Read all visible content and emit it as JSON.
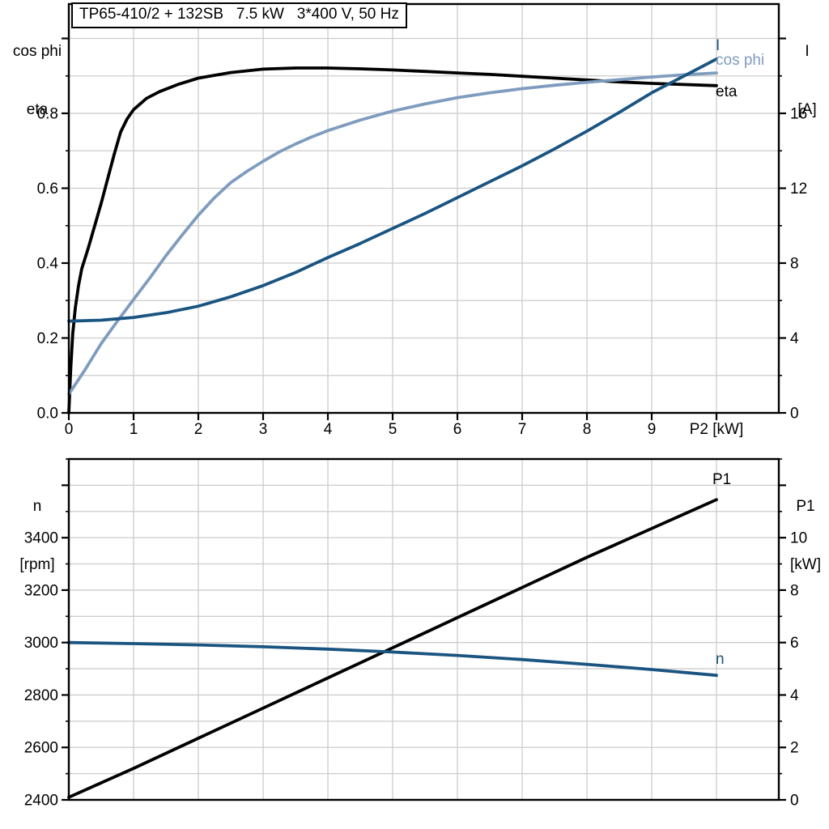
{
  "colors": {
    "black": "#000000",
    "dark_blue": "#1a5481",
    "light_blue": "#7f9cbe",
    "grid": "#cccccc",
    "axis": "#000000"
  },
  "chart_data": [
    {
      "type": "line",
      "title": "TP65-410/2 + 132SB   7.5 kW   3*400 V, 50 Hz",
      "x_axis": {
        "label": "P2 [kW]",
        "label_at": 10,
        "range": [
          0,
          10.9625
        ],
        "major_ticks": [
          0,
          1,
          2,
          3,
          4,
          5,
          6,
          7,
          8,
          9,
          10
        ],
        "tick_labels": [
          "0",
          "1",
          "2",
          "3",
          "4",
          "5",
          "6",
          "7",
          "8",
          "9",
          ""
        ],
        "gridlines": [
          1,
          2,
          3,
          4,
          5,
          6,
          7,
          8,
          9,
          10
        ]
      },
      "left_axis": {
        "header": [
          "cos phi",
          "eta"
        ],
        "range": [
          0,
          1.0919
        ],
        "major_ticks": [
          0,
          0.2,
          0.4,
          0.6,
          0.8,
          1.0
        ],
        "tick_labels": [
          "0.0",
          "0.2",
          "0.4",
          "0.6",
          "0.8",
          ""
        ],
        "minor_ticks": [
          0.1,
          0.3,
          0.5,
          0.7,
          0.9
        ],
        "gridlines": [
          0.1,
          0.2,
          0.3,
          0.4,
          0.5,
          0.6,
          0.7,
          0.8,
          0.9,
          1.0
        ]
      },
      "right_axis": {
        "header": [
          "I",
          "[A]"
        ],
        "range": [
          0,
          21.838
        ],
        "major_ticks": [
          0,
          4,
          8,
          12,
          16,
          20
        ],
        "tick_labels": [
          "0",
          "4",
          "8",
          "12",
          "16",
          ""
        ],
        "minor_ticks": [
          2,
          6,
          10,
          14,
          18
        ]
      },
      "series": [
        {
          "name": "eta",
          "label": "eta",
          "axis": "left",
          "color": "#000000",
          "points": [
            [
              0,
              0
            ],
            [
              0.03,
              0.12
            ],
            [
              0.06,
              0.21
            ],
            [
              0.1,
              0.28
            ],
            [
              0.15,
              0.34
            ],
            [
              0.2,
              0.385
            ],
            [
              0.3,
              0.44
            ],
            [
              0.4,
              0.5
            ],
            [
              0.5,
              0.56
            ],
            [
              0.6,
              0.625
            ],
            [
              0.7,
              0.69
            ],
            [
              0.8,
              0.75
            ],
            [
              0.9,
              0.785
            ],
            [
              1.0,
              0.81
            ],
            [
              1.2,
              0.84
            ],
            [
              1.4,
              0.858
            ],
            [
              1.7,
              0.878
            ],
            [
              2.0,
              0.894
            ],
            [
              2.5,
              0.909
            ],
            [
              3.0,
              0.918
            ],
            [
              3.5,
              0.921
            ],
            [
              4.0,
              0.921
            ],
            [
              4.5,
              0.919
            ],
            [
              5.0,
              0.916
            ],
            [
              5.5,
              0.912
            ],
            [
              6.0,
              0.908
            ],
            [
              6.5,
              0.904
            ],
            [
              7.0,
              0.899
            ],
            [
              7.5,
              0.894
            ],
            [
              8.0,
              0.889
            ],
            [
              8.5,
              0.884
            ],
            [
              9.0,
              0.88
            ],
            [
              9.5,
              0.877
            ],
            [
              10.0,
              0.874
            ]
          ]
        },
        {
          "name": "cos phi",
          "label": "cos phi",
          "axis": "left",
          "color": "#7f9cbe",
          "points": [
            [
              0,
              0.05
            ],
            [
              0.25,
              0.115
            ],
            [
              0.5,
              0.185
            ],
            [
              0.75,
              0.245
            ],
            [
              1.0,
              0.303
            ],
            [
              1.25,
              0.36
            ],
            [
              1.5,
              0.42
            ],
            [
              1.75,
              0.475
            ],
            [
              2.0,
              0.528
            ],
            [
              2.25,
              0.575
            ],
            [
              2.5,
              0.615
            ],
            [
              2.75,
              0.645
            ],
            [
              3.0,
              0.672
            ],
            [
              3.25,
              0.697
            ],
            [
              3.5,
              0.718
            ],
            [
              3.75,
              0.737
            ],
            [
              4.0,
              0.754
            ],
            [
              4.5,
              0.782
            ],
            [
              5.0,
              0.806
            ],
            [
              5.5,
              0.825
            ],
            [
              6.0,
              0.842
            ],
            [
              6.5,
              0.855
            ],
            [
              7.0,
              0.866
            ],
            [
              7.5,
              0.875
            ],
            [
              8.0,
              0.883
            ],
            [
              8.5,
              0.89
            ],
            [
              9.0,
              0.897
            ],
            [
              9.5,
              0.903
            ],
            [
              10.0,
              0.908
            ]
          ]
        },
        {
          "name": "I",
          "label": "I",
          "axis": "right",
          "color": "#1a5481",
          "points": [
            [
              0,
              4.9
            ],
            [
              0.5,
              4.95
            ],
            [
              1.0,
              5.1
            ],
            [
              1.5,
              5.35
            ],
            [
              2.0,
              5.7
            ],
            [
              2.5,
              6.2
            ],
            [
              3.0,
              6.8
            ],
            [
              3.5,
              7.5
            ],
            [
              4.0,
              8.3
            ],
            [
              4.5,
              9.05
            ],
            [
              5.0,
              9.85
            ],
            [
              5.5,
              10.65
            ],
            [
              6.0,
              11.5
            ],
            [
              6.5,
              12.35
            ],
            [
              7.0,
              13.2
            ],
            [
              7.5,
              14.1
            ],
            [
              8.0,
              15.05
            ],
            [
              8.5,
              16.05
            ],
            [
              9.0,
              17.1
            ],
            [
              9.5,
              18.0
            ],
            [
              10.0,
              18.9
            ]
          ]
        }
      ]
    },
    {
      "type": "line",
      "title": "",
      "x_axis": {
        "label": "",
        "label_at": null,
        "range": [
          0,
          10.9625
        ],
        "major_ticks": [],
        "tick_labels": [],
        "gridlines": [
          1,
          2,
          3,
          4,
          5,
          6,
          7,
          8,
          9,
          10
        ]
      },
      "left_axis": {
        "header": [
          "n",
          "[rpm]"
        ],
        "range": [
          2400,
          3700
        ],
        "major_ticks": [
          2400,
          2600,
          2800,
          3000,
          3200,
          3400,
          3600
        ],
        "tick_labels": [
          "2400",
          "2600",
          "2800",
          "3000",
          "3200",
          "3400",
          ""
        ],
        "minor_ticks": [
          2500,
          2700,
          2900,
          3100,
          3300,
          3500,
          3700
        ],
        "gridlines": [
          2500,
          2600,
          2700,
          2800,
          2900,
          3000,
          3100,
          3200,
          3300,
          3400,
          3500,
          3600,
          3700
        ]
      },
      "right_axis": {
        "header": [
          "P1",
          "[kW]"
        ],
        "range": [
          0,
          13.0
        ],
        "major_ticks": [
          0,
          2,
          4,
          6,
          8,
          10,
          12
        ],
        "tick_labels": [
          "0",
          "2",
          "4",
          "6",
          "8",
          "10",
          ""
        ],
        "minor_ticks": [
          1,
          3,
          5,
          7,
          9,
          11,
          13
        ]
      },
      "series": [
        {
          "name": "P1",
          "label": "P1",
          "axis": "right",
          "color": "#000000",
          "points": [
            [
              0,
              0.1
            ],
            [
              1,
              1.2
            ],
            [
              2,
              2.35
            ],
            [
              3,
              3.5
            ],
            [
              4,
              4.65
            ],
            [
              5,
              5.8
            ],
            [
              6,
              6.95
            ],
            [
              7,
              8.1
            ],
            [
              8,
              9.25
            ],
            [
              9,
              10.35
            ],
            [
              10,
              11.45
            ]
          ]
        },
        {
          "name": "n",
          "label": "n",
          "axis": "left",
          "color": "#1a5481",
          "points": [
            [
              0,
              3000
            ],
            [
              1,
              2996
            ],
            [
              2,
              2991
            ],
            [
              3,
              2984
            ],
            [
              4,
              2975
            ],
            [
              5,
              2964
            ],
            [
              6,
              2951
            ],
            [
              7,
              2935
            ],
            [
              8,
              2917
            ],
            [
              9,
              2897
            ],
            [
              10,
              2875
            ]
          ]
        }
      ]
    }
  ]
}
